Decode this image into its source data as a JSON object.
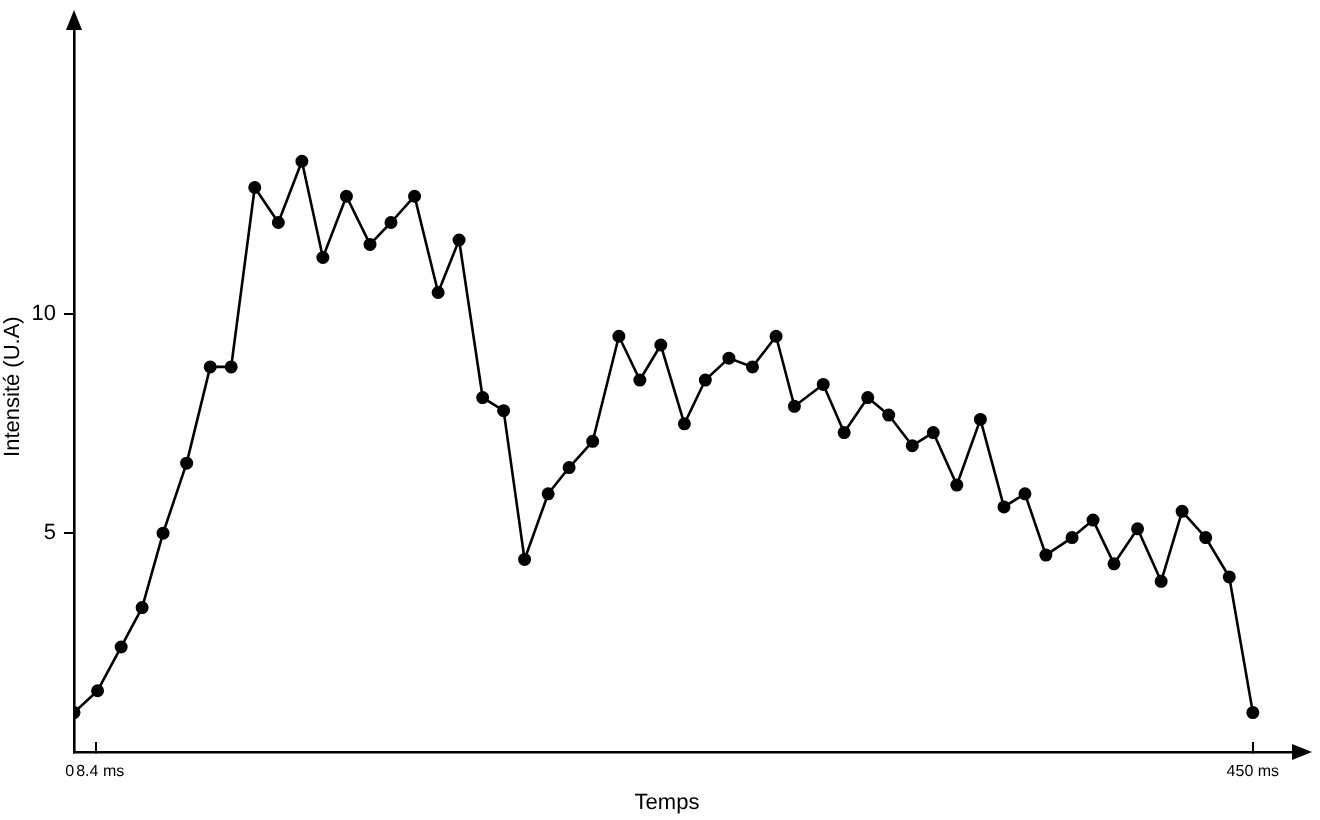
{
  "chart_data": {
    "type": "line",
    "xlabel": "Temps",
    "ylabel": "Intensité (U.A)",
    "x": [
      0,
      9,
      18,
      26,
      34,
      43,
      52,
      60,
      69,
      78,
      87,
      95,
      104,
      113,
      121,
      130,
      139,
      147,
      156,
      164,
      172,
      181,
      189,
      198,
      208,
      216,
      224,
      233,
      241,
      250,
      259,
      268,
      275,
      286,
      294,
      303,
      311,
      320,
      328,
      337,
      346,
      355,
      363,
      371,
      381,
      389,
      397,
      406,
      415,
      423,
      432,
      441,
      450
    ],
    "series": [
      {
        "color": "#000000",
        "values": [
          0.9,
          1.4,
          2.4,
          3.3,
          5.0,
          6.6,
          8.8,
          8.8,
          12.9,
          12.1,
          13.5,
          11.3,
          12.7,
          11.6,
          12.1,
          12.7,
          10.5,
          11.7,
          8.1,
          7.8,
          4.4,
          5.9,
          6.5,
          7.1,
          9.5,
          8.5,
          9.3,
          7.5,
          8.5,
          9.0,
          8.8,
          9.5,
          7.9,
          8.4,
          7.3,
          8.1,
          7.7,
          7.0,
          7.3,
          6.1,
          7.6,
          5.6,
          5.9,
          4.5,
          4.9,
          5.3,
          4.3,
          5.1,
          3.9,
          5.5,
          4.9,
          4.0,
          0.9
        ]
      }
    ],
    "xlim": [
      0,
      468
    ],
    "ylim": [
      0,
      16.7
    ],
    "xticks": [
      0,
      {
        "value": 8.4,
        "label": "8.4 ms"
      },
      {
        "value": 450,
        "label": "450 ms"
      }
    ],
    "yticks": [
      5,
      10
    ],
    "grid": false,
    "legend": false,
    "marker": "circle",
    "line_style": "solid"
  }
}
